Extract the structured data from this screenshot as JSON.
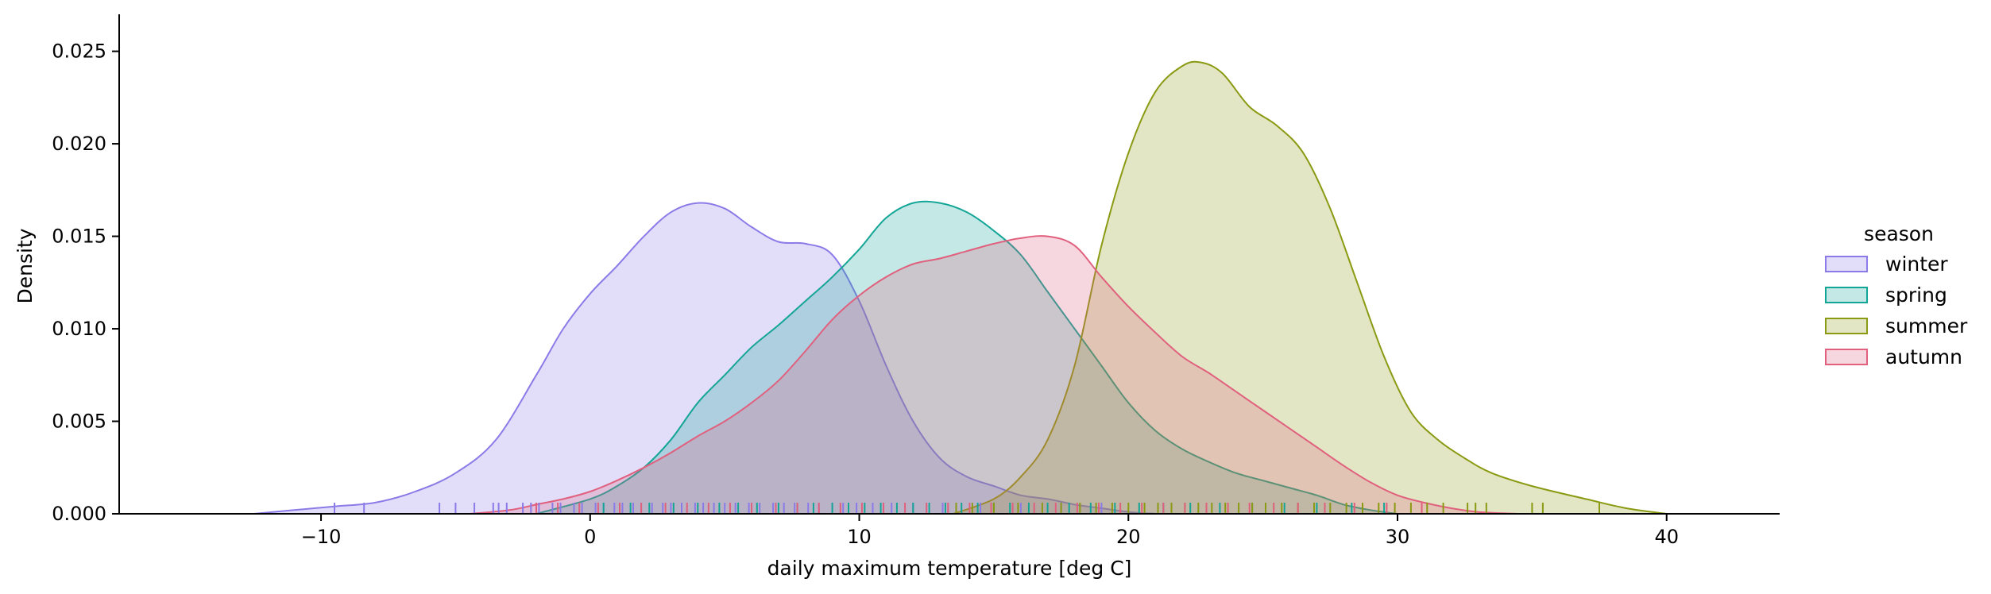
{
  "chart_data": {
    "type": "area",
    "title": "",
    "xlabel": "daily maximum temperature [deg C]",
    "ylabel": "Density",
    "xlim": [
      -17.5,
      44.2
    ],
    "ylim": [
      0,
      0.027
    ],
    "xticks": [
      -10,
      0,
      10,
      20,
      30,
      40
    ],
    "yticks": [
      0.0,
      0.005,
      0.01,
      0.015,
      0.02,
      0.025
    ],
    "xtick_labels": [
      "−10",
      "0",
      "10",
      "20",
      "30",
      "40"
    ],
    "ytick_labels": [
      "0.000",
      "0.005",
      "0.010",
      "0.015",
      "0.020",
      "0.025"
    ],
    "grid": false,
    "legend": {
      "title": "season",
      "placement": "right"
    },
    "series": [
      {
        "name": "winter",
        "color": "#8a7be8",
        "x": [
          -12.5,
          -11,
          -9.5,
          -8,
          -6.5,
          -5,
          -3.5,
          -2,
          -1,
          0,
          1,
          2,
          3,
          4,
          5,
          6,
          7,
          8,
          9,
          10,
          11,
          12,
          13,
          14,
          15,
          16,
          17,
          18,
          19,
          20,
          21
        ],
        "y": [
          0.0,
          0.0002,
          0.0004,
          0.0006,
          0.0012,
          0.0022,
          0.004,
          0.0075,
          0.01,
          0.0119,
          0.0134,
          0.015,
          0.0163,
          0.0168,
          0.0165,
          0.0155,
          0.0147,
          0.0146,
          0.014,
          0.0115,
          0.008,
          0.005,
          0.003,
          0.002,
          0.0015,
          0.001,
          0.0008,
          0.0005,
          0.0003,
          0.0001,
          0.0
        ]
      },
      {
        "name": "spring",
        "color": "#13a596",
        "x": [
          -2,
          0,
          1,
          2,
          3,
          4,
          5,
          6,
          7,
          8,
          9,
          10,
          11,
          12,
          13,
          14,
          15,
          16,
          17,
          18,
          19,
          20,
          21,
          22,
          23,
          24,
          25,
          26,
          27,
          28,
          29,
          30
        ],
        "y": [
          0.0,
          0.0008,
          0.0015,
          0.0025,
          0.004,
          0.006,
          0.0075,
          0.009,
          0.0102,
          0.0115,
          0.0128,
          0.0143,
          0.016,
          0.0168,
          0.0168,
          0.0163,
          0.0153,
          0.014,
          0.012,
          0.01,
          0.008,
          0.006,
          0.0045,
          0.0035,
          0.0028,
          0.0022,
          0.0018,
          0.0014,
          0.001,
          0.0005,
          0.0002,
          0.0
        ]
      },
      {
        "name": "summer",
        "color": "#8a9a12",
        "x": [
          13.5,
          15,
          16,
          17,
          18,
          19,
          20,
          21,
          22,
          22.7,
          23.5,
          24.5,
          25.5,
          26.5,
          27.5,
          28.5,
          29.5,
          30.5,
          31.5,
          32.5,
          33.5,
          35,
          37,
          38.5,
          40
        ],
        "y": [
          0.0,
          0.0008,
          0.002,
          0.004,
          0.008,
          0.0145,
          0.0195,
          0.0228,
          0.0242,
          0.0244,
          0.0238,
          0.022,
          0.021,
          0.0195,
          0.0165,
          0.0125,
          0.0085,
          0.0055,
          0.004,
          0.003,
          0.0022,
          0.0015,
          0.0008,
          0.0003,
          0.0
        ]
      },
      {
        "name": "autumn",
        "color": "#e0607e",
        "x": [
          -4.5,
          -3,
          -2,
          -1,
          0,
          1,
          2,
          3,
          4,
          5,
          6,
          7,
          8,
          9,
          10,
          11,
          12,
          13,
          14,
          15,
          16,
          17,
          18,
          19,
          20,
          21,
          22,
          23,
          24,
          25,
          26,
          27,
          28,
          29,
          30,
          31,
          32,
          33,
          34.5
        ],
        "y": [
          0.0,
          0.0002,
          0.0005,
          0.0008,
          0.0012,
          0.0018,
          0.0025,
          0.0033,
          0.0042,
          0.005,
          0.006,
          0.0072,
          0.0088,
          0.0105,
          0.0118,
          0.0128,
          0.0135,
          0.0138,
          0.0142,
          0.0146,
          0.0149,
          0.015,
          0.0145,
          0.0128,
          0.0112,
          0.0098,
          0.0085,
          0.0076,
          0.0066,
          0.0056,
          0.0046,
          0.0036,
          0.0026,
          0.0017,
          0.001,
          0.0006,
          0.0003,
          0.0001,
          0.0
        ]
      }
    ],
    "rug": [
      {
        "name": "winter",
        "x": [
          -9.5,
          -8.4,
          -5.6,
          -5.0,
          -4.3,
          -3.6,
          -3.4,
          -3.1,
          -2.5,
          -2.2,
          -1.9,
          -1.4,
          -1.1,
          -0.6,
          -0.3,
          0.2,
          0.5,
          0.9,
          1.2,
          1.6,
          1.9,
          2.3,
          2.7,
          3.0,
          3.4,
          3.9,
          4.2,
          4.6,
          5.0,
          5.4,
          5.9,
          6.3,
          6.8,
          7.2,
          7.6,
          8.1,
          8.5,
          9.0,
          9.4,
          9.9,
          10.5,
          11.2,
          12.0,
          13.1,
          14.5,
          16.0,
          17.5,
          19.0
        ]
      },
      {
        "name": "spring",
        "x": [
          0.5,
          1.5,
          2.2,
          3.1,
          4.0,
          4.8,
          5.5,
          6.2,
          7.0,
          7.7,
          8.3,
          9.0,
          9.6,
          10.2,
          10.8,
          11.4,
          12.0,
          12.6,
          13.2,
          13.8,
          14.4,
          15.0,
          15.6,
          16.3,
          17.0,
          17.8,
          18.6,
          19.5,
          20.4,
          21.3,
          22.3,
          23.4,
          24.6,
          25.8,
          27.0,
          28.3,
          29.5
        ]
      },
      {
        "name": "summer",
        "x": [
          13.6,
          14.2,
          15.0,
          15.9,
          16.8,
          17.5,
          18.2,
          18.8,
          19.4,
          20.0,
          20.6,
          21.1,
          21.6,
          22.1,
          22.6,
          23.1,
          23.6,
          24.1,
          24.6,
          25.1,
          25.7,
          26.3,
          26.9,
          27.5,
          28.1,
          28.7,
          29.3,
          29.9,
          30.5,
          31.1,
          31.7,
          32.6,
          32.9,
          33.3,
          35.0,
          35.4,
          37.5
        ]
      },
      {
        "name": "autumn",
        "x": [
          -2.0,
          -1.2,
          -0.4,
          0.3,
          1.1,
          1.9,
          2.8,
          3.6,
          4.4,
          5.2,
          6.0,
          6.9,
          7.7,
          8.5,
          9.3,
          10.1,
          10.9,
          11.7,
          12.5,
          13.3,
          14.1,
          14.9,
          15.7,
          16.5,
          17.3,
          18.1,
          18.9,
          19.7,
          20.5,
          21.3,
          22.1,
          22.9,
          23.7,
          24.5,
          25.4,
          26.3,
          27.3,
          28.4,
          29.6,
          30.9
        ]
      }
    ]
  }
}
